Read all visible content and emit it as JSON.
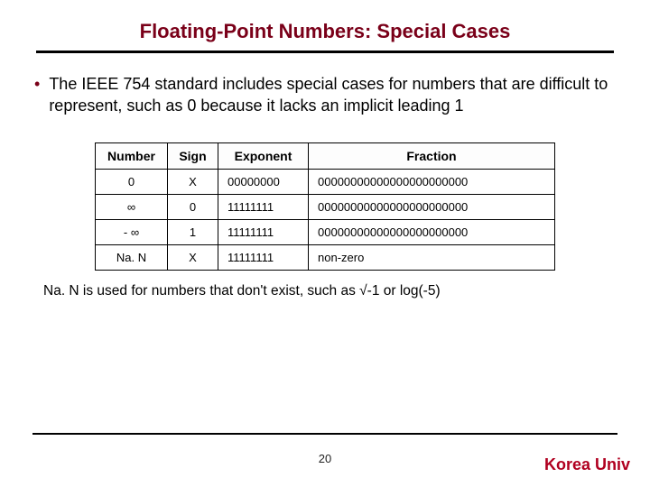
{
  "title": "Floating-Point Numbers: Special Cases",
  "title_color": "#7a0019",
  "bullet_color": "#7a0019",
  "bullet_text": "The IEEE 754 standard includes special cases for numbers that are difficult to represent, such as 0 because it lacks an implicit leading 1",
  "table": {
    "headers": [
      "Number",
      "Sign",
      "Exponent",
      "Fraction"
    ],
    "rows": [
      {
        "number": "0",
        "sign": "X",
        "exponent": "00000000",
        "fraction": "00000000000000000000000"
      },
      {
        "number": "∞",
        "sign": "0",
        "exponent": "11111111",
        "fraction": "00000000000000000000000"
      },
      {
        "number": "- ∞",
        "sign": "1",
        "exponent": "11111111",
        "fraction": "00000000000000000000000"
      },
      {
        "number": "Na. N",
        "sign": "X",
        "exponent": "11111111",
        "fraction": "non-zero"
      }
    ]
  },
  "footnote": "Na. N is used for numbers that don't exist, such as √-1 or log(-5)",
  "page_number": "20",
  "university": "Korea Univ",
  "university_color": "#b00020"
}
